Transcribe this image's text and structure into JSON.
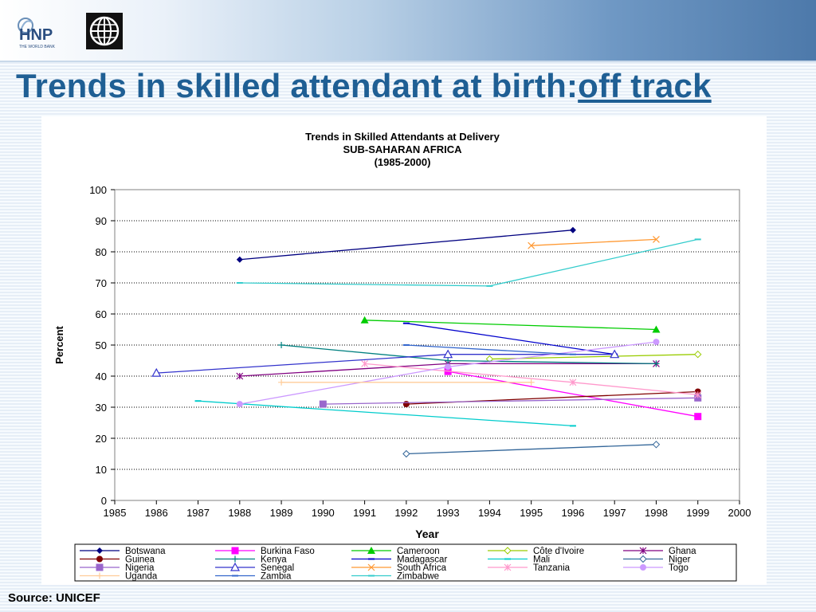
{
  "slide": {
    "title_main": "Trends in skilled attendant at birth:",
    "title_link": "off track",
    "source": "Source: UNICEF",
    "logo_text": "HNP",
    "logo_subtext": "THE WORLD BANK"
  },
  "chart_data": {
    "type": "line",
    "title": [
      "Trends in Skilled Attendants at Delivery",
      "SUB-SAHARAN AFRICA",
      "(1985-2000)"
    ],
    "xlabel": "Year",
    "ylabel": "Percent",
    "xlim": [
      1985,
      2000
    ],
    "ylim": [
      0,
      100
    ],
    "x_ticks": [
      1985,
      1986,
      1987,
      1988,
      1989,
      1990,
      1991,
      1992,
      1993,
      1994,
      1995,
      1996,
      1997,
      1998,
      1999,
      2000
    ],
    "y_ticks": [
      0,
      10,
      20,
      30,
      40,
      50,
      60,
      70,
      80,
      90,
      100
    ],
    "grid": "horizontal dotted",
    "legend_position": "bottom",
    "series": [
      {
        "name": "Botswana",
        "color": "#000080",
        "marker": "diamond",
        "points": [
          [
            1988,
            77.5
          ],
          [
            1996,
            87
          ]
        ]
      },
      {
        "name": "Burkina Faso",
        "color": "#ff00ff",
        "marker": "square",
        "points": [
          [
            1993,
            41.5
          ],
          [
            1999,
            27
          ]
        ]
      },
      {
        "name": "Cameroon",
        "color": "#00cc00",
        "marker": "triangle",
        "points": [
          [
            1991,
            58
          ],
          [
            1998,
            55
          ]
        ]
      },
      {
        "name": "Côte d'Ivoire",
        "color": "#99cc00",
        "marker": "diamond-open",
        "points": [
          [
            1994,
            45.5
          ],
          [
            1999,
            47
          ]
        ]
      },
      {
        "name": "Ghana",
        "color": "#800080",
        "marker": "star",
        "points": [
          [
            1988,
            40
          ],
          [
            1993,
            44
          ],
          [
            1998,
            44
          ]
        ]
      },
      {
        "name": "Guinea",
        "color": "#800000",
        "marker": "circle",
        "points": [
          [
            1992,
            31
          ],
          [
            1999,
            35
          ]
        ]
      },
      {
        "name": "Kenya",
        "color": "#008080",
        "marker": "plus",
        "points": [
          [
            1989,
            50
          ],
          [
            1993,
            45
          ],
          [
            1998,
            44
          ]
        ]
      },
      {
        "name": "Madagascar",
        "color": "#0000cc",
        "marker": "dash",
        "points": [
          [
            1992,
            57
          ],
          [
            1997,
            47
          ]
        ]
      },
      {
        "name": "Mali",
        "color": "#00cccc",
        "marker": "dash",
        "points": [
          [
            1987,
            32
          ],
          [
            1996,
            24
          ]
        ]
      },
      {
        "name": "Niger",
        "color": "#336699",
        "marker": "diamond-open",
        "points": [
          [
            1992,
            15
          ],
          [
            1998,
            18
          ]
        ]
      },
      {
        "name": "Nigeria",
        "color": "#9966cc",
        "marker": "square",
        "points": [
          [
            1990,
            31
          ],
          [
            1999,
            33
          ]
        ]
      },
      {
        "name": "Senegal",
        "color": "#3333cc",
        "marker": "triangle-open",
        "points": [
          [
            1986,
            41
          ],
          [
            1993,
            47
          ],
          [
            1997,
            47
          ]
        ]
      },
      {
        "name": "South Africa",
        "color": "#ff9933",
        "marker": "cross",
        "points": [
          [
            1995,
            82
          ],
          [
            1998,
            84
          ]
        ]
      },
      {
        "name": "Tanzania",
        "color": "#ff99cc",
        "marker": "star",
        "points": [
          [
            1991,
            44
          ],
          [
            1996,
            38
          ],
          [
            1999,
            34
          ]
        ]
      },
      {
        "name": "Togo",
        "color": "#cc99ff",
        "marker": "circle",
        "points": [
          [
            1988,
            31
          ],
          [
            1993,
            43
          ],
          [
            1998,
            51
          ]
        ]
      },
      {
        "name": "Uganda",
        "color": "#ffcc99",
        "marker": "plus",
        "points": [
          [
            1989,
            38
          ],
          [
            1995,
            38
          ]
        ]
      },
      {
        "name": "Zambia",
        "color": "#3366cc",
        "marker": "dash",
        "points": [
          [
            1992,
            50
          ],
          [
            1996,
            47
          ]
        ]
      },
      {
        "name": "Zimbabwe",
        "color": "#33cccc",
        "marker": "dash",
        "points": [
          [
            1988,
            70
          ],
          [
            1994,
            69
          ],
          [
            1999,
            84
          ]
        ]
      }
    ]
  }
}
